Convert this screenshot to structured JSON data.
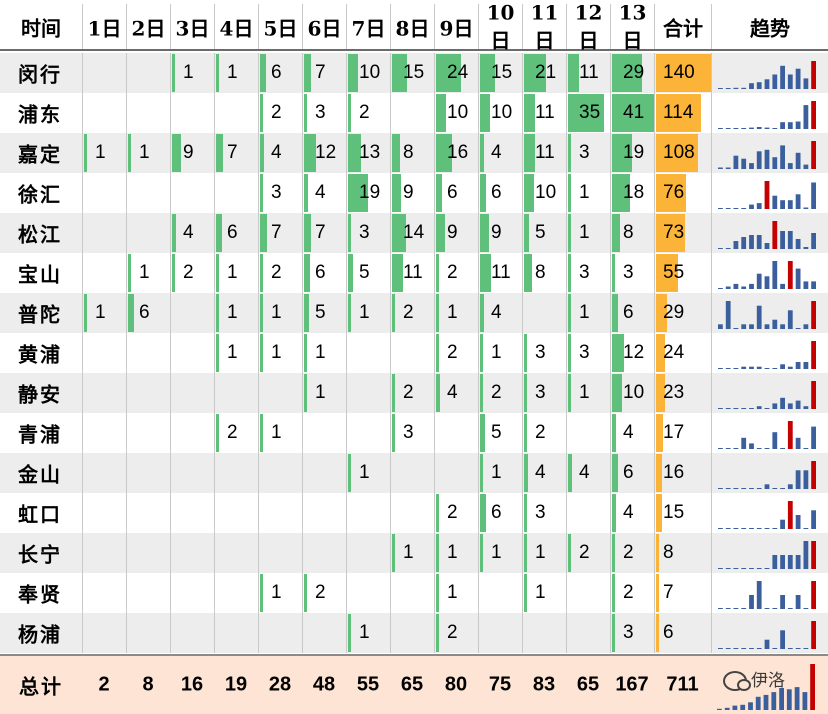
{
  "table": {
    "header": {
      "time_label": "时间",
      "days": [
        "1日",
        "2日",
        "3日",
        "4日",
        "5日",
        "6日",
        "7日",
        "8日",
        "9日",
        "10日",
        "11日",
        "12日",
        "13日"
      ],
      "total_label": "合计",
      "trend_label": "趋势"
    },
    "rows": [
      {
        "name": "闵行",
        "values": [
          null,
          null,
          1,
          1,
          6,
          7,
          10,
          15,
          24,
          15,
          21,
          11,
          29
        ],
        "total": 140
      },
      {
        "name": "浦东",
        "values": [
          null,
          null,
          null,
          null,
          2,
          3,
          2,
          null,
          10,
          10,
          11,
          35,
          41
        ],
        "total": 114
      },
      {
        "name": "嘉定",
        "values": [
          1,
          1,
          9,
          7,
          4,
          12,
          13,
          8,
          16,
          4,
          11,
          3,
          19
        ],
        "total": 108
      },
      {
        "name": "徐汇",
        "values": [
          null,
          null,
          null,
          null,
          3,
          4,
          19,
          9,
          6,
          6,
          10,
          1,
          18
        ],
        "total": 76
      },
      {
        "name": "松江",
        "values": [
          null,
          null,
          4,
          6,
          7,
          7,
          3,
          14,
          9,
          9,
          5,
          1,
          8
        ],
        "total": 73
      },
      {
        "name": "宝山",
        "values": [
          null,
          1,
          2,
          1,
          2,
          6,
          5,
          11,
          2,
          11,
          8,
          3,
          3
        ],
        "total": 55
      },
      {
        "name": "普陀",
        "values": [
          1,
          6,
          null,
          1,
          1,
          5,
          1,
          2,
          1,
          4,
          null,
          1,
          6
        ],
        "total": 29
      },
      {
        "name": "黄浦",
        "values": [
          null,
          null,
          null,
          1,
          1,
          1,
          null,
          null,
          2,
          1,
          3,
          3,
          12
        ],
        "total": 24
      },
      {
        "name": "静安",
        "values": [
          null,
          null,
          null,
          null,
          null,
          1,
          null,
          2,
          4,
          2,
          3,
          1,
          10
        ],
        "total": 23
      },
      {
        "name": "青浦",
        "values": [
          null,
          null,
          null,
          2,
          1,
          null,
          null,
          3,
          null,
          5,
          2,
          null,
          4
        ],
        "total": 17
      },
      {
        "name": "金山",
        "values": [
          null,
          null,
          null,
          null,
          null,
          null,
          1,
          null,
          null,
          1,
          4,
          4,
          6
        ],
        "total": 16
      },
      {
        "name": "虹口",
        "values": [
          null,
          null,
          null,
          null,
          null,
          null,
          null,
          null,
          2,
          6,
          3,
          null,
          4
        ],
        "total": 15
      },
      {
        "name": "长宁",
        "values": [
          null,
          null,
          null,
          null,
          null,
          null,
          null,
          1,
          1,
          1,
          1,
          2,
          2
        ],
        "total": 8
      },
      {
        "name": "奉贤",
        "values": [
          null,
          null,
          null,
          null,
          1,
          2,
          null,
          null,
          1,
          null,
          1,
          null,
          2
        ],
        "total": 7
      },
      {
        "name": "杨浦",
        "values": [
          null,
          null,
          null,
          null,
          null,
          null,
          1,
          null,
          2,
          null,
          null,
          null,
          3
        ],
        "total": 6
      }
    ],
    "totals": {
      "label": "总计",
      "values": [
        2,
        8,
        16,
        19,
        28,
        48,
        55,
        65,
        80,
        75,
        83,
        65,
        167
      ],
      "grand_total": 711
    },
    "watermark": "伊洛",
    "colors": {
      "bar_green": "#5ec07a",
      "bar_orange": "#fbb338",
      "spark_blue": "#3b5f9c",
      "spark_red": "#c40000",
      "total_bg": "#fde4d4",
      "shade_bg": "#ededed"
    }
  }
}
